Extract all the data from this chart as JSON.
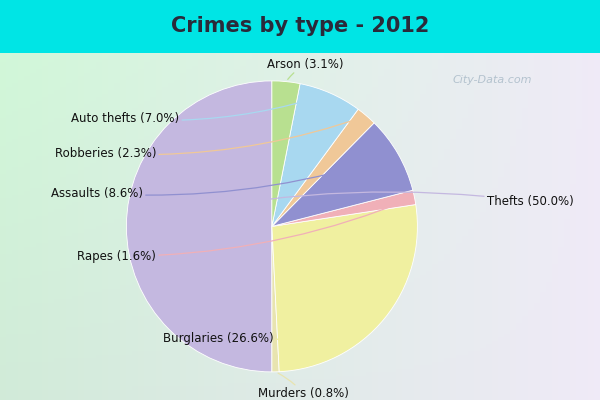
{
  "title": "Crimes by type - 2012",
  "slices": [
    {
      "label": "Thefts",
      "pct": 50.0,
      "color": "#c4b8e0"
    },
    {
      "label": "Murders",
      "pct": 0.8,
      "color": "#e8e4b0"
    },
    {
      "label": "Burglaries",
      "pct": 26.6,
      "color": "#f0f0a0"
    },
    {
      "label": "Rapes",
      "pct": 1.6,
      "color": "#f0b0b8"
    },
    {
      "label": "Assaults",
      "pct": 8.6,
      "color": "#9090d0"
    },
    {
      "label": "Robberies",
      "pct": 2.3,
      "color": "#f0c898"
    },
    {
      "label": "Auto thefts",
      "pct": 7.0,
      "color": "#a8d8f0"
    },
    {
      "label": "Arson",
      "pct": 3.1,
      "color": "#b8e090"
    }
  ],
  "startangle": 90,
  "bg_cyan": "#00e5e5",
  "bg_inner_tl": "#c8ecd8",
  "bg_inner_br": "#d8eef8",
  "title_color": "#2a2a3a",
  "title_fontsize": 15,
  "label_fontsize": 8.5,
  "watermark_text": "City-Data.com",
  "watermark_color": "#aabbc8"
}
